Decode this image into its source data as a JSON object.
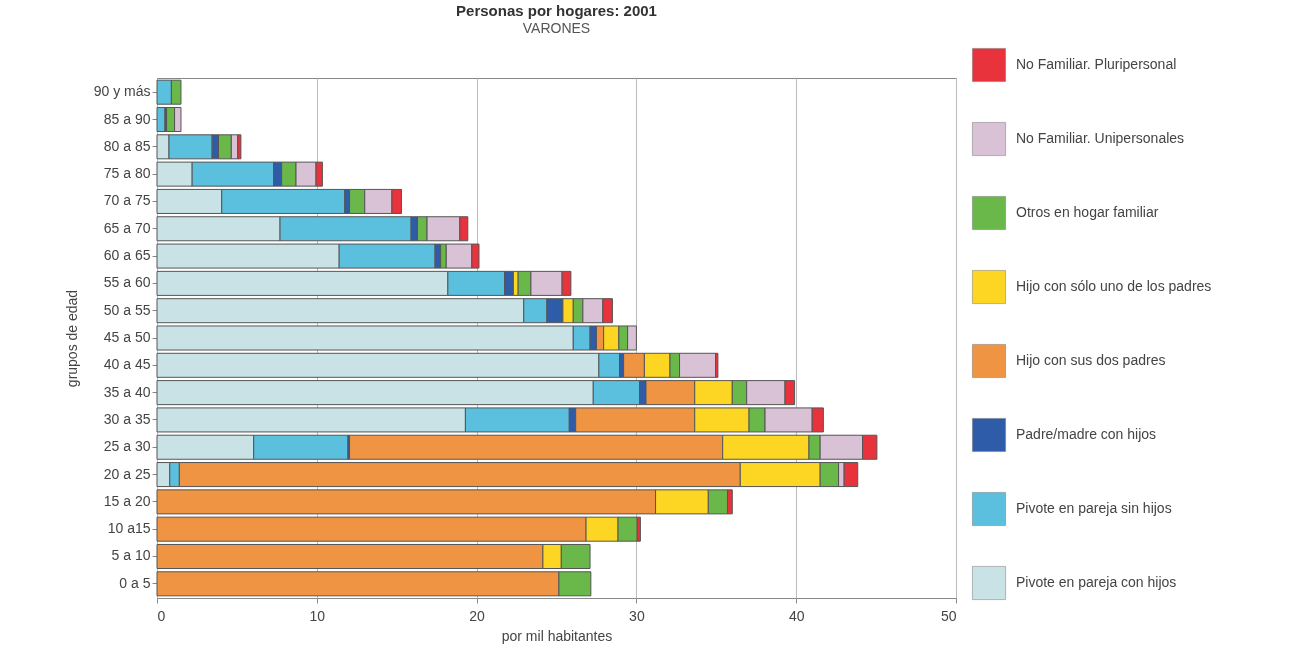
{
  "chart_data": {
    "type": "bar",
    "orientation": "horizontal",
    "stacked": true,
    "title": "Personas por hogares: 2001",
    "subtitle": "VARONES",
    "xlabel": "por mil habitantes",
    "ylabel": "grupos de edad",
    "categories": [
      "90 y más",
      "85 a 90",
      "80 a 85",
      "75 a 80",
      "70 a 75",
      "65 a 70",
      "60 a 65",
      "55 a 60",
      "50 a 55",
      "45 a 50",
      "40 a 45",
      "35 a 40",
      "30 a 35",
      "25 a 30",
      "20 a 25",
      "15 a 20",
      "10 a15",
      "5 a 10",
      "0 a 5"
    ],
    "series": [
      {
        "name": "Pivote en pareja con hijos",
        "color": "#c9e2e6",
        "values": [
          0,
          0,
          0.75,
          2.2,
          4.05,
          7.7,
          11.4,
          18.2,
          22.95,
          26.05,
          27.65,
          27.3,
          19.3,
          6.05,
          0.8,
          0,
          0,
          0,
          0
        ]
      },
      {
        "name": "Pivote en pareja sin hijos",
        "color": "#5bbfde",
        "values": [
          0.9,
          0.5,
          2.7,
          5.1,
          7.7,
          8.2,
          6.0,
          3.55,
          1.45,
          1.05,
          1.3,
          2.9,
          6.5,
          5.9,
          0.6,
          0,
          0,
          0,
          0
        ]
      },
      {
        "name": "Padre/madre con hijos",
        "color": "#2f5ca8",
        "values": [
          0,
          0.1,
          0.4,
          0.5,
          0.3,
          0.4,
          0.35,
          0.55,
          1.0,
          0.4,
          0.25,
          0.4,
          0.4,
          0.1,
          0,
          0,
          0,
          0,
          0
        ]
      },
      {
        "name": "Hijo con sus dos padres",
        "color": "#ef9443",
        "values": [
          0,
          0,
          0,
          0,
          0,
          0,
          0,
          0,
          0,
          0.45,
          1.3,
          3.05,
          7.45,
          23.35,
          35.1,
          31.2,
          26.85,
          24.15,
          25.15
        ]
      },
      {
        "name": "Hijo con sólo uno de los padres",
        "color": "#fcd623",
        "values": [
          0,
          0,
          0,
          0,
          0,
          0,
          0,
          0.3,
          0.65,
          0.95,
          1.6,
          2.35,
          3.4,
          5.4,
          5.0,
          3.3,
          2.0,
          1.15,
          0
        ]
      },
      {
        "name": "Otros en hogar familiar",
        "color": "#6ab84a",
        "values": [
          0.6,
          0.5,
          0.8,
          0.9,
          0.95,
          0.6,
          0.35,
          0.8,
          0.6,
          0.55,
          0.6,
          0.9,
          1.0,
          0.7,
          1.15,
          1.2,
          1.2,
          1.8,
          2.0
        ]
      },
      {
        "name": "No Familiar. Unipersonales",
        "color": "#d9c1d6",
        "values": [
          0,
          0.4,
          0.4,
          1.25,
          1.7,
          2.05,
          1.6,
          1.95,
          1.25,
          0.55,
          2.25,
          2.4,
          2.95,
          2.65,
          0.35,
          0,
          0,
          0,
          0
        ]
      },
      {
        "name": "No Familiar. Pluripersonal",
        "color": "#e8323c",
        "values": [
          0,
          0,
          0.2,
          0.4,
          0.6,
          0.5,
          0.45,
          0.55,
          0.6,
          0,
          0.15,
          0.6,
          0.7,
          0.9,
          0.85,
          0.3,
          0.2,
          0,
          0
        ]
      }
    ],
    "xlim": [
      0,
      50
    ],
    "xticks": [
      0,
      10,
      20,
      30,
      40,
      50
    ],
    "grid": "x",
    "legend": "right"
  }
}
